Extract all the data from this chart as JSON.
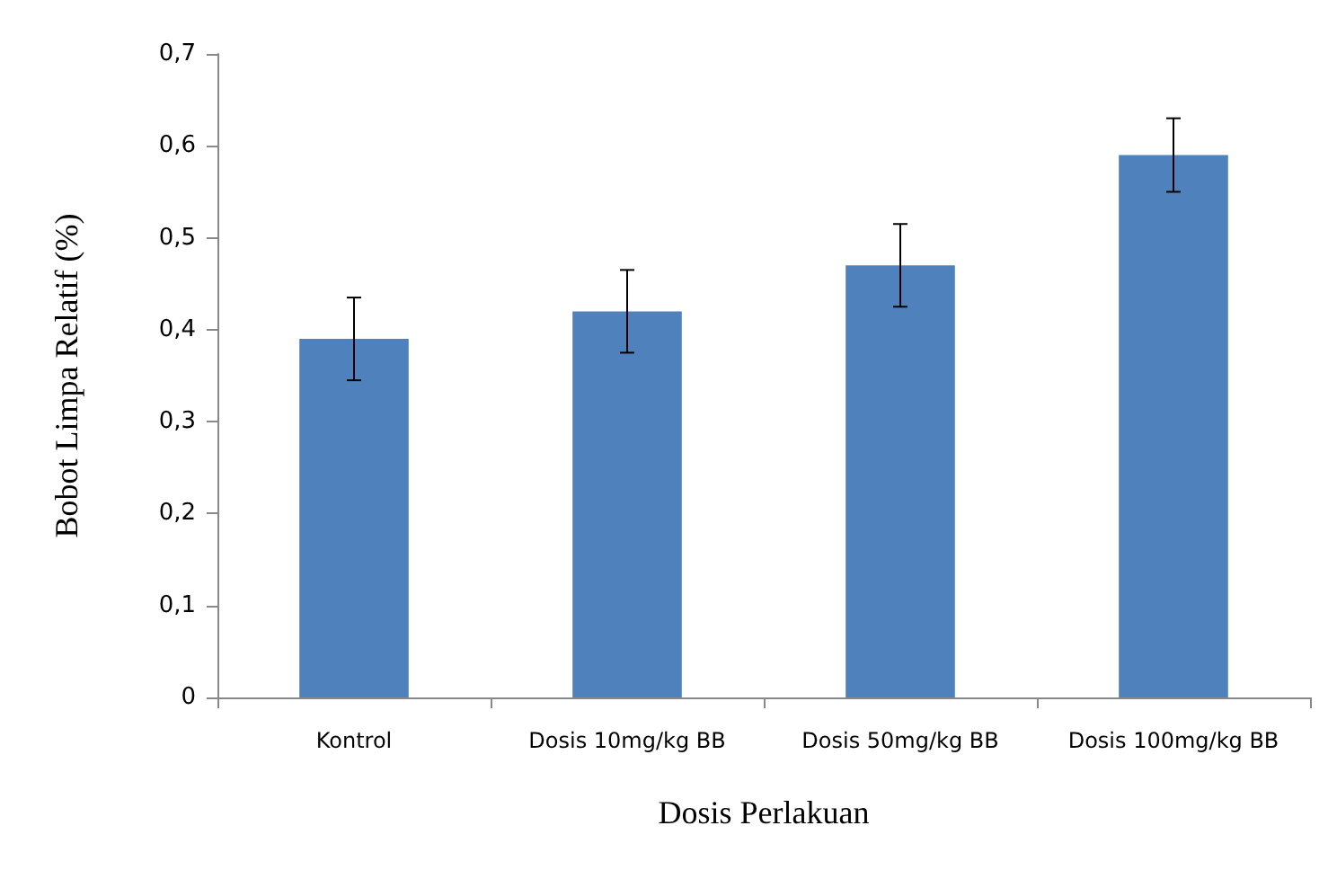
{
  "chart_data": {
    "type": "bar",
    "xlabel": "Dosis Perlakuan",
    "ylabel": "Bobot Limpa Relatif (%)",
    "categories": [
      "Kontrol",
      "Dosis 10mg/kg BB",
      "Dosis 50mg/kg BB",
      "Dosis 100mg/kg BB"
    ],
    "values": [
      0.39,
      0.42,
      0.47,
      0.59
    ],
    "errors": [
      0.045,
      0.045,
      0.045,
      0.04
    ],
    "color": "#4f81bd",
    "ylim": [
      0,
      0.7
    ],
    "yticks": [
      0,
      {
        "value": 0.1,
        "label": "0,1"
      },
      {
        "value": 0.2,
        "label": "0,2"
      },
      {
        "value": 0.3,
        "label": "0,3"
      },
      {
        "value": 0.4,
        "label": "0,4"
      },
      {
        "value": 0.5,
        "label": "0,5"
      },
      {
        "value": 0.6,
        "label": "0,6"
      },
      {
        "value": 0.7,
        "label": "0,7"
      }
    ],
    "grid": false
  }
}
